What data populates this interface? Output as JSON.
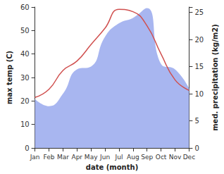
{
  "chart_data": {
    "type": "line",
    "categories": [
      "Jan",
      "Feb",
      "Mar",
      "Apr",
      "May",
      "Jun",
      "Jul",
      "Aug",
      "Sep",
      "Oct",
      "Nov",
      "Dec"
    ],
    "x_label": "date (month)",
    "y_label": "max temp (C)",
    "y2_label": "med. precipitation (kg/m2)",
    "ylim": [
      0,
      60
    ],
    "yticks": [
      0,
      10,
      20,
      30,
      40,
      50,
      60
    ],
    "y2lim": [
      0,
      26
    ],
    "y2ticks": [
      0,
      5,
      10,
      15,
      20,
      25
    ],
    "grid": false,
    "series": [
      {
        "name": "max temp",
        "type": "line",
        "color": "#d0504f",
        "values": [
          21.5,
          25,
          33,
          37,
          44,
          51,
          59,
          58,
          52,
          40,
          29,
          24.5
        ]
      },
      {
        "name": "med. precipitation",
        "type": "area",
        "axis": "y2",
        "color": "#a8b6f0",
        "values": [
          9,
          7.7,
          10,
          14.5,
          15,
          20.5,
          23,
          24,
          25.8,
          15.5,
          14.5,
          11
        ]
      }
    ]
  }
}
